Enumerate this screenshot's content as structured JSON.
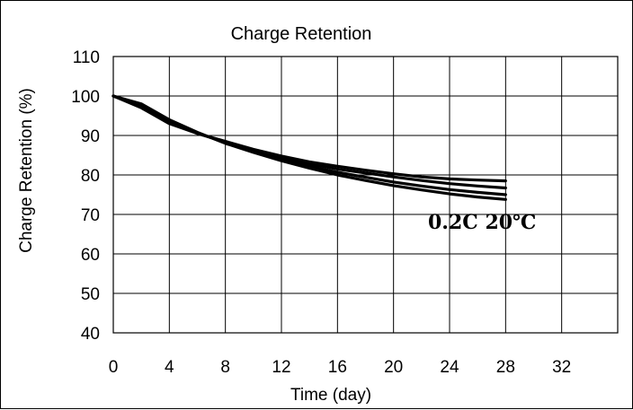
{
  "chart_data": {
    "type": "line",
    "title": "Charge Retention",
    "xlabel": "Time (day)",
    "ylabel": "Charge Retention (%)",
    "xlim": [
      0,
      36
    ],
    "ylim": [
      40,
      110
    ],
    "xticks": [
      0,
      4,
      8,
      12,
      16,
      20,
      24,
      28,
      32
    ],
    "yticks": [
      40,
      50,
      60,
      70,
      80,
      90,
      100,
      110
    ],
    "grid": true,
    "annotation": "0.2C 20℃",
    "series": [
      {
        "x": [
          0,
          2,
          4,
          6,
          8,
          10,
          12,
          14,
          16,
          18,
          20,
          22,
          24,
          26,
          28
        ],
        "y": [
          100,
          97,
          93,
          90.5,
          88.5,
          86.5,
          84.8,
          83.3,
          82.2,
          81.2,
          80.3,
          79.5,
          79.0,
          78.7,
          78.5
        ]
      },
      {
        "x": [
          0,
          2,
          4,
          6,
          8,
          10,
          12,
          14,
          16,
          18,
          20,
          22,
          24,
          26,
          28
        ],
        "y": [
          100,
          97.3,
          93.3,
          90.5,
          88.4,
          86.3,
          84.5,
          82.8,
          81.5,
          80.5,
          79.5,
          78.6,
          77.8,
          77.2,
          76.7
        ]
      },
      {
        "x": [
          0,
          2,
          4,
          6,
          8,
          10,
          12,
          14,
          16,
          18,
          20,
          22,
          24,
          26,
          28
        ],
        "y": [
          100,
          97.6,
          93.6,
          90.6,
          88.2,
          86.0,
          84.0,
          82.2,
          80.7,
          79.4,
          78.2,
          77.2,
          76.3,
          75.6,
          75.0
        ]
      },
      {
        "x": [
          0,
          2,
          4,
          6,
          8,
          10,
          12,
          14,
          16,
          18,
          20,
          22,
          24,
          26,
          28
        ],
        "y": [
          100,
          98.0,
          94.0,
          90.8,
          88.0,
          85.7,
          83.6,
          81.7,
          80.0,
          78.6,
          77.3,
          76.2,
          75.2,
          74.4,
          73.8
        ]
      }
    ]
  }
}
